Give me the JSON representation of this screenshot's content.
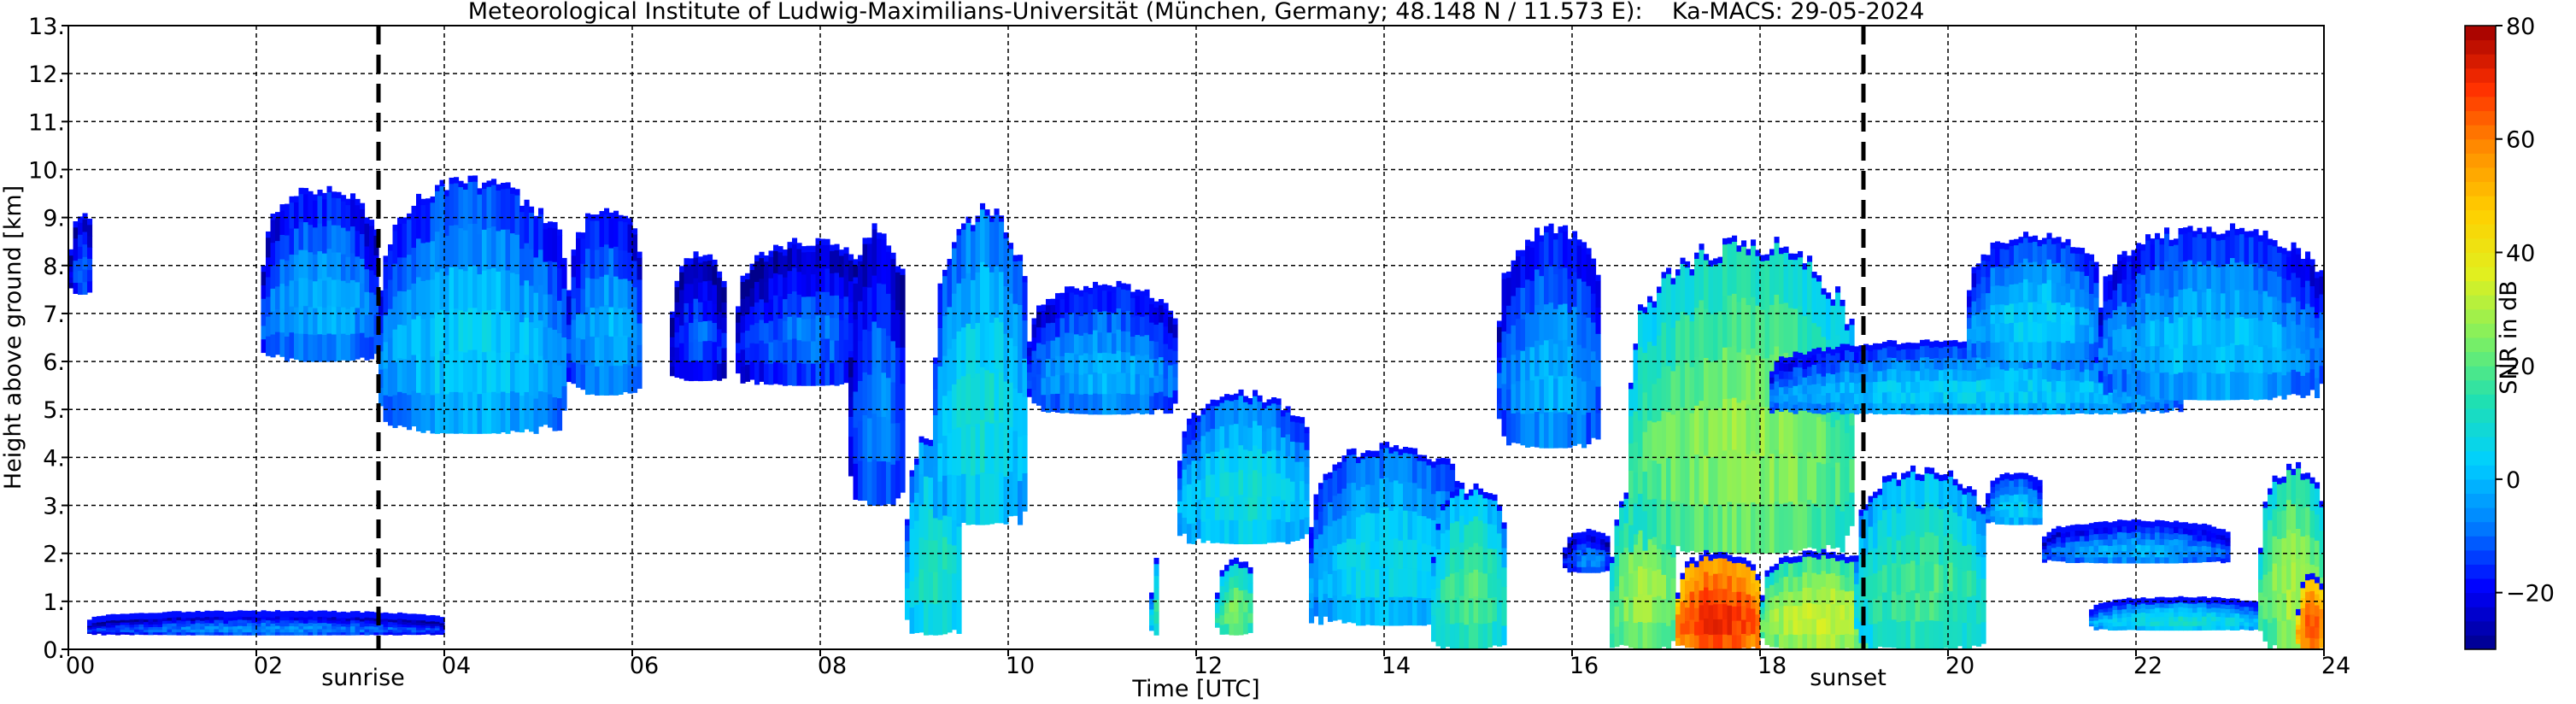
{
  "chart_data": {
    "type": "heatmap",
    "title": "Meteorological Institute of Ludwig-Maximilians-Universität (München, Germany; 48.148 N / 11.573 E):    Ka-MACS: 29-05-2024",
    "xlabel": "Time [UTC]",
    "ylabel": "Height above ground [km]",
    "xlim": [
      0,
      24
    ],
    "ylim": [
      0,
      13
    ],
    "x_ticks": [
      0,
      2,
      4,
      6,
      8,
      10,
      12,
      14,
      16,
      18,
      20,
      22,
      24
    ],
    "x_tick_labels": [
      "00",
      "02",
      "04",
      "06",
      "08",
      "10",
      "12",
      "14",
      "16",
      "18",
      "20",
      "22",
      "24"
    ],
    "y_ticks": [
      0,
      1,
      2,
      3,
      4,
      5,
      6,
      7,
      8,
      9,
      10,
      11,
      12,
      13
    ],
    "y_tick_labels": [
      "0.",
      "1.",
      "2.",
      "3.",
      "4.",
      "5.",
      "6.",
      "7.",
      "8.",
      "9.",
      "10.",
      "11.",
      "12.",
      "13."
    ],
    "grid": true,
    "markers": [
      {
        "label": "sunrise",
        "x": 3.3
      },
      {
        "label": "sunset",
        "x": 19.1
      }
    ],
    "colorbar": {
      "label": "SNR in dB",
      "range": [
        -30,
        80
      ],
      "ticks": [
        -20,
        0,
        20,
        40,
        60,
        80
      ],
      "tick_labels": [
        "−20",
        "0",
        "20",
        "40",
        "60",
        "80"
      ],
      "colors": [
        "#00008b",
        "#0000ff",
        "#0080ff",
        "#00d0ff",
        "#20e0b0",
        "#80f060",
        "#e0f020",
        "#ffd000",
        "#ff9000",
        "#ff3000",
        "#a00000"
      ]
    },
    "regions": [
      {
        "t0": 0.0,
        "t1": 0.25,
        "h0": 7.4,
        "h1": 9.0,
        "snr": -8
      },
      {
        "t0": 2.05,
        "t1": 3.3,
        "h0": 6.0,
        "h1": 9.6,
        "snr": 0
      },
      {
        "t0": 3.3,
        "t1": 5.3,
        "h0": 4.5,
        "h1": 9.8,
        "snr": 5
      },
      {
        "t0": 5.3,
        "t1": 6.1,
        "h0": 5.3,
        "h1": 9.2,
        "snr": 0
      },
      {
        "t0": 0.2,
        "t1": 4.0,
        "h0": 0.3,
        "h1": 0.7,
        "snr": -5
      },
      {
        "t0": 6.4,
        "t1": 7.0,
        "h0": 5.6,
        "h1": 8.2,
        "snr": -10
      },
      {
        "t0": 7.1,
        "t1": 8.6,
        "h0": 5.5,
        "h1": 8.5,
        "snr": -8
      },
      {
        "t0": 8.3,
        "t1": 8.9,
        "h0": 3.0,
        "h1": 8.8,
        "snr": -5
      },
      {
        "t0": 8.9,
        "t1": 9.5,
        "h0": 0.3,
        "h1": 4.6,
        "snr": 15
      },
      {
        "t0": 9.2,
        "t1": 10.2,
        "h0": 2.6,
        "h1": 9.2,
        "snr": 10
      },
      {
        "t0": 10.2,
        "t1": 11.8,
        "h0": 4.9,
        "h1": 7.6,
        "snr": 0
      },
      {
        "t0": 11.5,
        "t1": 11.6,
        "h0": 0.3,
        "h1": 1.8,
        "snr": 15
      },
      {
        "t0": 12.2,
        "t1": 12.6,
        "h0": 0.3,
        "h1": 1.8,
        "snr": 25
      },
      {
        "t0": 11.8,
        "t1": 13.2,
        "h0": 2.2,
        "h1": 5.3,
        "snr": 10
      },
      {
        "t0": 13.2,
        "t1": 14.9,
        "h0": 0.5,
        "h1": 4.3,
        "snr": 8
      },
      {
        "t0": 14.5,
        "t1": 15.3,
        "h0": 0.0,
        "h1": 3.4,
        "snr": 20
      },
      {
        "t0": 15.2,
        "t1": 16.3,
        "h0": 4.2,
        "h1": 8.8,
        "snr": 0
      },
      {
        "t0": 15.9,
        "t1": 16.4,
        "h0": 1.6,
        "h1": 2.4,
        "snr": -5
      },
      {
        "t0": 16.4,
        "t1": 17.1,
        "h0": 0.0,
        "h1": 3.5,
        "snr": 30
      },
      {
        "t0": 16.6,
        "t1": 19.0,
        "h0": 2.0,
        "h1": 8.6,
        "snr": 28
      },
      {
        "t0": 17.1,
        "t1": 18.0,
        "h0": 0.0,
        "h1": 2.0,
        "snr": 72
      },
      {
        "t0": 18.0,
        "t1": 19.2,
        "h0": 0.0,
        "h1": 2.0,
        "snr": 35
      },
      {
        "t0": 19.0,
        "t1": 20.4,
        "h0": 0.0,
        "h1": 3.8,
        "snr": 20
      },
      {
        "t0": 20.4,
        "t1": 21.0,
        "h0": 2.6,
        "h1": 3.6,
        "snr": 5
      },
      {
        "t0": 18.1,
        "t1": 22.5,
        "h0": 4.9,
        "h1": 6.4,
        "snr": 5
      },
      {
        "t0": 20.2,
        "t1": 21.6,
        "h0": 6.0,
        "h1": 8.6,
        "snr": 5
      },
      {
        "t0": 21.6,
        "t1": 24.0,
        "h0": 5.2,
        "h1": 8.8,
        "snr": 3
      },
      {
        "t0": 21.0,
        "t1": 23.0,
        "h0": 1.8,
        "h1": 2.6,
        "snr": 0
      },
      {
        "t0": 21.5,
        "t1": 23.4,
        "h0": 0.4,
        "h1": 1.0,
        "snr": 10
      },
      {
        "t0": 23.3,
        "t1": 24.0,
        "h0": 0.0,
        "h1": 3.8,
        "snr": 30
      },
      {
        "t0": 23.7,
        "t1": 24.0,
        "h0": 0.0,
        "h1": 1.5,
        "snr": 65
      }
    ]
  }
}
